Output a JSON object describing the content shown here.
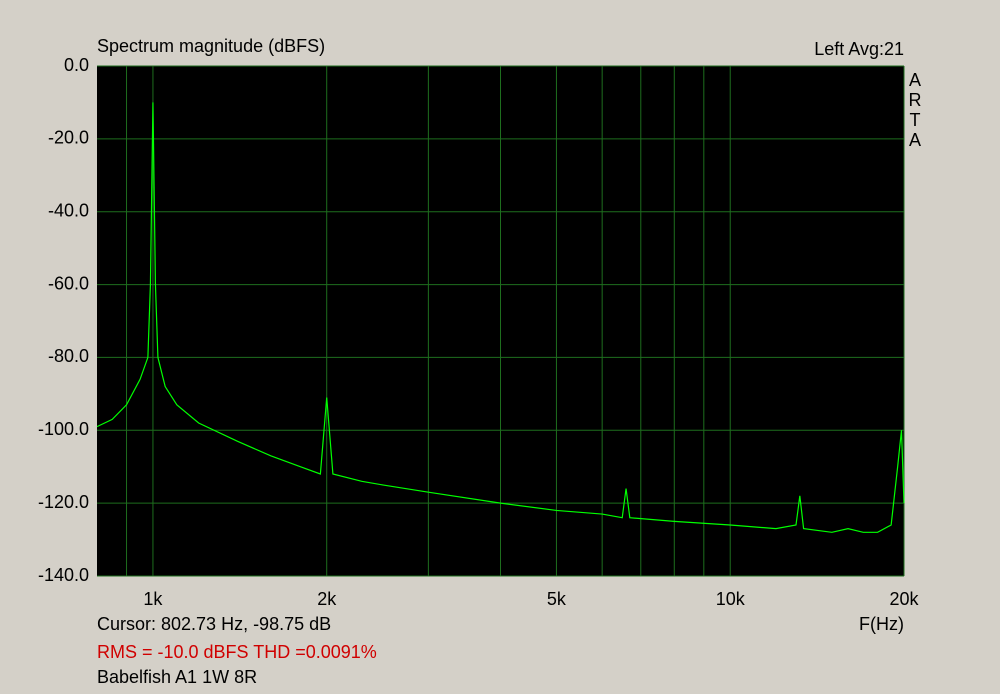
{
  "chart_data": {
    "type": "line",
    "title": "Spectrum magnitude (dBFS)",
    "channel_info": "Left  Avg:21",
    "side_label": "ARTA",
    "xlabel": "F(Hz)",
    "cursor": "Cursor: 802.73 Hz, -98.75 dB",
    "measurement": "RMS =  -10.0 dBFS  THD =0.0091%",
    "device": "Babelfish A1 1W 8R",
    "xscale": "log",
    "grid": true,
    "xlim": [
      800,
      20000
    ],
    "ylim": [
      -140,
      0
    ],
    "xticks": [
      {
        "value": 1000,
        "label": "1k"
      },
      {
        "value": 2000,
        "label": "2k"
      },
      {
        "value": 5000,
        "label": "5k"
      },
      {
        "value": 10000,
        "label": "10k"
      },
      {
        "value": 20000,
        "label": "20k"
      }
    ],
    "xgrid_minor": [
      900,
      3000,
      4000,
      6000,
      7000,
      8000,
      9000
    ],
    "yticks": [
      {
        "value": 0,
        "label": "0.0"
      },
      {
        "value": -20,
        "label": "-20.0"
      },
      {
        "value": -40,
        "label": "-40.0"
      },
      {
        "value": -60,
        "label": "-60.0"
      },
      {
        "value": -80,
        "label": "-80.0"
      },
      {
        "value": -100,
        "label": "-100.0"
      },
      {
        "value": -120,
        "label": "-120.0"
      },
      {
        "value": -140,
        "label": "-140.0"
      }
    ],
    "series": [
      {
        "color": "#00ff00",
        "x": [
          800,
          850,
          900,
          950,
          980,
          990,
          1000,
          1010,
          1020,
          1050,
          1100,
          1200,
          1400,
          1600,
          1800,
          1950,
          2000,
          2050,
          2300,
          2500,
          3000,
          4000,
          5000,
          6000,
          6500,
          6600,
          6700,
          8000,
          10000,
          12000,
          13000,
          13200,
          13400,
          15000,
          16000,
          17000,
          18000,
          19000,
          19500,
          19800,
          20000
        ],
        "values": [
          -99,
          -97,
          -93,
          -86,
          -80,
          -60,
          -10,
          -60,
          -80,
          -88,
          -93,
          -98,
          -103,
          -107,
          -110,
          -112,
          -91,
          -112,
          -114,
          -115,
          -117,
          -120,
          -122,
          -123,
          -124,
          -116,
          -124,
          -125,
          -126,
          -127,
          -126,
          -118,
          -127,
          -128,
          -127,
          -128,
          -128,
          -126,
          -110,
          -100,
          -120
        ]
      }
    ]
  }
}
